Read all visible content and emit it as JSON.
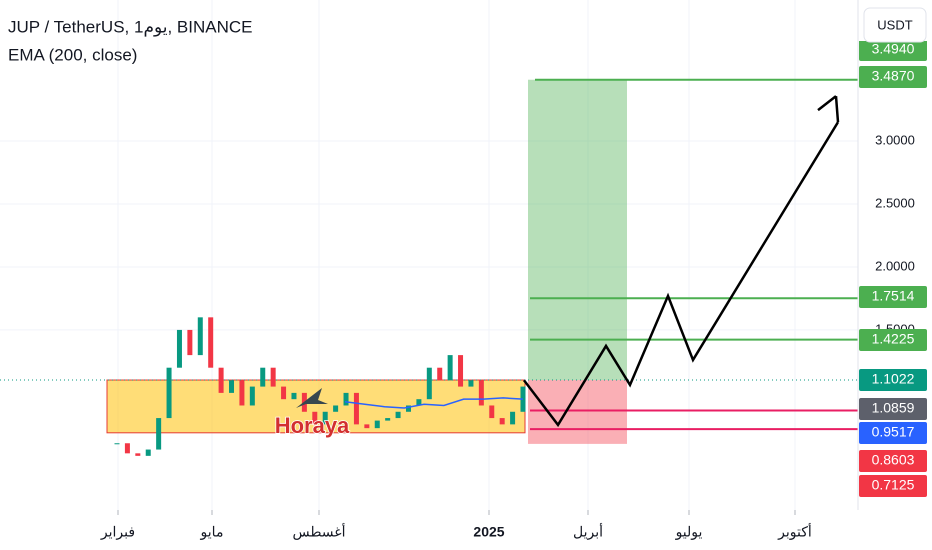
{
  "header": {
    "symbol": "JUP / TetherUS, 1يوم, BINANCE",
    "indicator": "EMA (200, close)",
    "currency": "USDT",
    "watermark": "Horaya"
  },
  "chart_data": {
    "type": "candlestick",
    "ylim": [
      0.07,
      4.12
    ],
    "yticks": [
      {
        "value": 1.5,
        "label": "1.5000"
      },
      {
        "value": 2,
        "label": "2.0000"
      },
      {
        "value": 2.5,
        "label": "2.5000"
      },
      {
        "value": 3,
        "label": "3.0000"
      }
    ],
    "categories": [
      "فبراير",
      "مايو",
      "أغسطس",
      "2025",
      "أبريل",
      "يوليو",
      "أكتوبر"
    ],
    "grid": true,
    "price": [
      0.6,
      0.52,
      0.5,
      0.55,
      0.8,
      1.2,
      1.5,
      1.3,
      1.6,
      1.2,
      1.0,
      1.1,
      0.9,
      1.05,
      1.2,
      1.05,
      0.95,
      1.0,
      0.85,
      0.75,
      0.85,
      0.9,
      1.0,
      0.75,
      0.72,
      0.78,
      0.8,
      0.85,
      0.9,
      0.95,
      1.2,
      1.1,
      1.3,
      1.05,
      1.1,
      0.9,
      0.8,
      0.75,
      0.85,
      1.05
    ],
    "ema": [
      0.93,
      0.91,
      0.89,
      0.88,
      0.91,
      0.9,
      0.95,
      0.95,
      0.96,
      0.95
    ],
    "levels": [
      {
        "value": 3.487,
        "color": "#4caf50"
      },
      {
        "value": 1.7514,
        "color": "#4caf50"
      },
      {
        "value": 1.4225,
        "color": "#4caf50"
      },
      {
        "value": 0.8603,
        "color": "#e91e63"
      },
      {
        "value": 0.7125,
        "color": "#e91e63"
      }
    ],
    "target_zone": [
      1.1022,
      3.487
    ],
    "stop_zone": [
      0.595,
      1.1022
    ],
    "range_box": [
      0.683,
      1.1022
    ],
    "projection": [
      1.1,
      0.746,
      1.373,
      1.063,
      1.77,
      1.262,
      3.15
    ],
    "price_labels": [
      {
        "value": 3.494,
        "label": "3.4940",
        "color": "#4caf50"
      },
      {
        "value": 3.487,
        "label": "3.4870",
        "color": "#4caf50"
      },
      {
        "value": 1.7514,
        "label": "1.7514",
        "color": "#4caf50"
      },
      {
        "value": 1.4225,
        "label": "1.4225",
        "color": "#4caf50"
      },
      {
        "value": 1.1022,
        "label": "1.1022",
        "color": "#089981"
      },
      {
        "value": 1.0859,
        "label": "1.0859",
        "color": "#5d606b"
      },
      {
        "value": 0.9517,
        "label": "0.9517",
        "color": "#2962ff"
      },
      {
        "value": 0.8603,
        "label": "0.8603",
        "color": "#f23645"
      },
      {
        "value": 0.7125,
        "label": "0.7125",
        "color": "#f23645"
      }
    ]
  }
}
